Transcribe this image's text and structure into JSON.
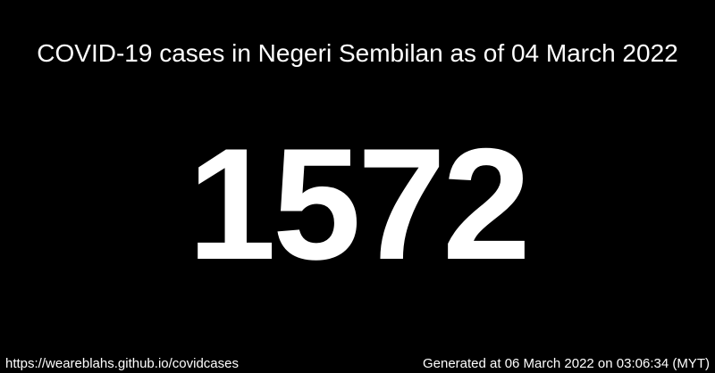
{
  "title": "COVID-19 cases in Negeri Sembilan as of 04 March 2022",
  "case_count": "1572",
  "footer": {
    "source_url": "https://weareblahs.github.io/covidcases",
    "generated": "Generated at 06 March 2022 on 03:06:34 (MYT)"
  },
  "colors": {
    "background": "#000000",
    "text": "#ffffff"
  }
}
